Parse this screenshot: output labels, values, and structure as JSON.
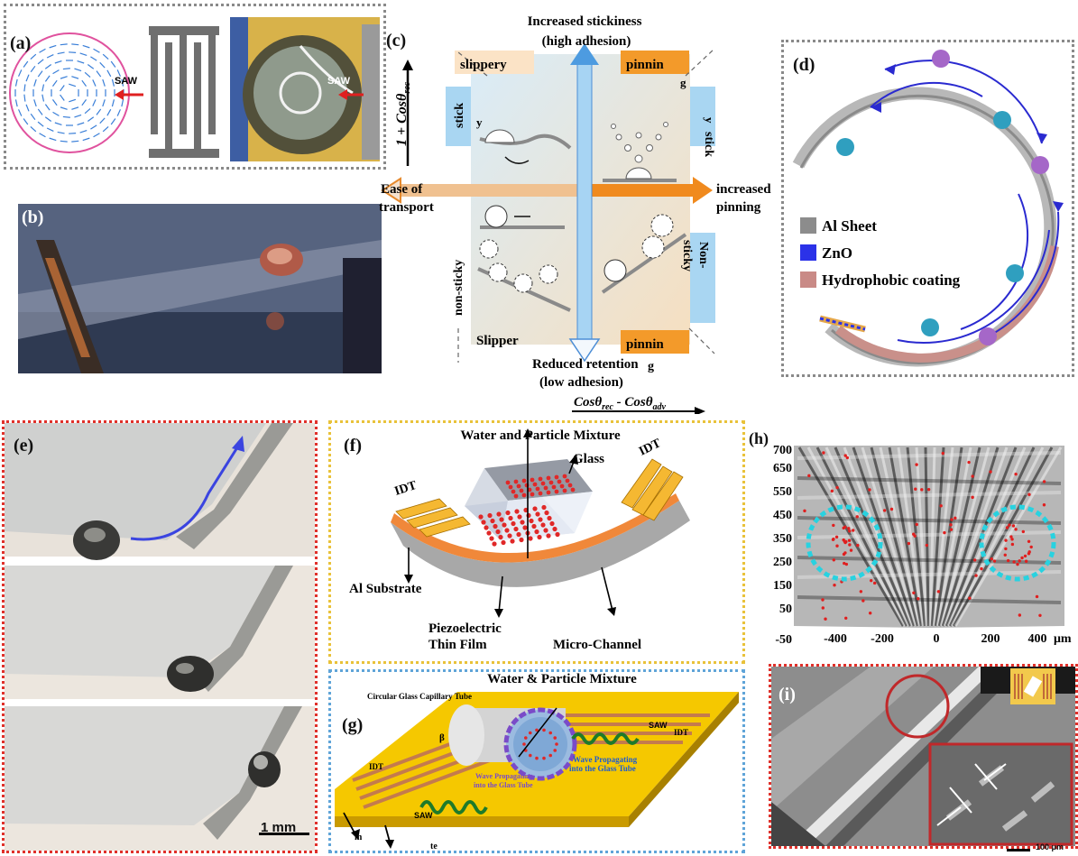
{
  "panels": {
    "a": {
      "label": "(a)",
      "saw1": "SAW",
      "saw2": "SAW"
    },
    "b": {
      "label": "(b)"
    },
    "c": {
      "label": "(c)",
      "top1": "Increased stickiness",
      "top2": "(high adhesion)",
      "slippery_tl": "slippery",
      "pinnin_tr": "pinnin",
      "g_tr": "g",
      "stick_l": "stick",
      "y_l": "y",
      "stick_r": "stick",
      "y_r": "y",
      "ease1": "Ease of",
      "ease2": "transport",
      "incr1": "increased",
      "incr2": "pinning",
      "nonsticky_l": "non-sticky",
      "nonsticky_r1": "Non-",
      "nonsticky_r2": "sticky",
      "slipper_bl": "Slipper",
      "pinnin_br": "pinnin",
      "bottom1": "Reduced retention",
      "bottom_g": "g",
      "bottom2": "(low adhesion)",
      "yaxis": "1 + Cosθ",
      "yaxis_sub": "rec",
      "xaxis_a": "Cosθ",
      "xaxis_sub1": "rec",
      "xaxis_b": " - Cosθ",
      "xaxis_sub2": "adv"
    },
    "d": {
      "label": "(d)",
      "legend": [
        "Al Sheet",
        "ZnO",
        "Hydrophobic coating"
      ],
      "legend_colors": [
        "#8c8c8c",
        "#2b32e8",
        "#c98a86"
      ]
    },
    "e": {
      "label": "(e)",
      "scalebar": "1 mm"
    },
    "f": {
      "label": "(f)",
      "title": "Water and Particle Mixture",
      "glass": "Glass",
      "idt_left": "IDT",
      "idt_right": "IDT",
      "al_substrate": "Al Substrate",
      "piezo1": "Piezoelectric",
      "piezo2": "Thin Film",
      "microchannel": "Micro-Channel"
    },
    "g": {
      "label": "(g)",
      "title": "Water & Particle Mixture",
      "capillary": "Circular Glass Capillary Tube",
      "saw_right": "SAW",
      "idt_right": "IDT",
      "idt_left": "IDT",
      "beta": "β",
      "wave_right1": "Wave Propagating",
      "wave_right2": "into the Glass Tube",
      "wave_left1": "Wave Propagating",
      "wave_left2": "into the Glass Tube",
      "saw_left": "SAW",
      "m": "m",
      "te": "te"
    },
    "h": {
      "label": "(h)",
      "yticks": [
        "700",
        "650",
        "550",
        "450",
        "350",
        "250",
        "150",
        "50",
        "-50"
      ],
      "xticks": [
        "-400",
        "-200",
        "0",
        "200",
        "400"
      ],
      "unit": "μm"
    },
    "i": {
      "label": "(i)",
      "scalebar": "100 μm"
    }
  }
}
